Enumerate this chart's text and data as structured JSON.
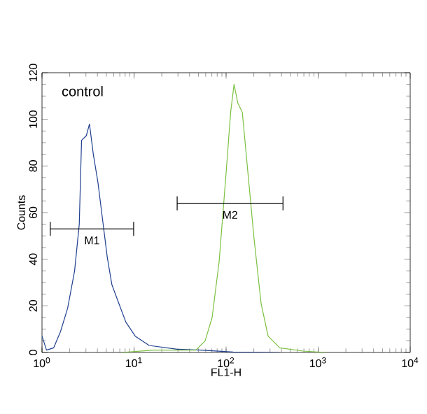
{
  "chart_data": {
    "type": "line",
    "xlabel": "FL1-H",
    "ylabel": "Counts",
    "log": "x",
    "xlim": [
      1,
      10000
    ],
    "ylim": [
      0,
      120
    ],
    "xticks": [
      {
        "value": 1,
        "label": "10$^{0}$"
      },
      {
        "value": 10,
        "label": "10$^{1}$"
      },
      {
        "value": 100,
        "label": "10$^{2}$"
      },
      {
        "value": 1000,
        "label": "10$^{3}$"
      },
      {
        "value": 10000,
        "label": "10$^{4}$"
      }
    ],
    "yticks": [
      0,
      20,
      40,
      60,
      80,
      100,
      120
    ],
    "grid": false,
    "marker": "none",
    "annotations": [
      "control"
    ],
    "series": [
      {
        "color": "#1f3f8f",
        "x": [
          1,
          1.12,
          1.34,
          1.59,
          1.9,
          2.26,
          2.54,
          2.69,
          3.03,
          3.28,
          3.61,
          4.05,
          4.55,
          5.11,
          5.75,
          6.84,
          8.15,
          10.3,
          14.6,
          29.4,
          52.7,
          119,
          382
        ],
        "values": [
          7,
          1,
          2,
          9,
          19,
          35,
          55,
          91,
          93,
          98,
          85,
          73,
          57,
          41,
          29,
          21,
          13,
          7,
          3,
          1.4,
          1,
          0.2,
          0
        ]
      },
      {
        "color": "#7cc040",
        "x": [
          7.26,
          16.4,
          46.9,
          59.2,
          70.5,
          84,
          100,
          112,
          122,
          134,
          150,
          169,
          201,
          240,
          286,
          382,
          685,
          1230
        ],
        "values": [
          0,
          1,
          1,
          5,
          15,
          39,
          77,
          103,
          115,
          107,
          103,
          81,
          49,
          21,
          7,
          2,
          0.6,
          0
        ]
      },
      {
        "name": "M1",
        "color": "#000000",
        "x": [
          1.23,
          9.9
        ],
        "values": [
          53,
          53
        ],
        "errors": [
          3,
          3
        ]
      },
      {
        "name": "M2",
        "color": "#000000",
        "x": [
          29.4,
          415
        ],
        "values": [
          64,
          64
        ],
        "errors": [
          3,
          3
        ]
      }
    ]
  }
}
